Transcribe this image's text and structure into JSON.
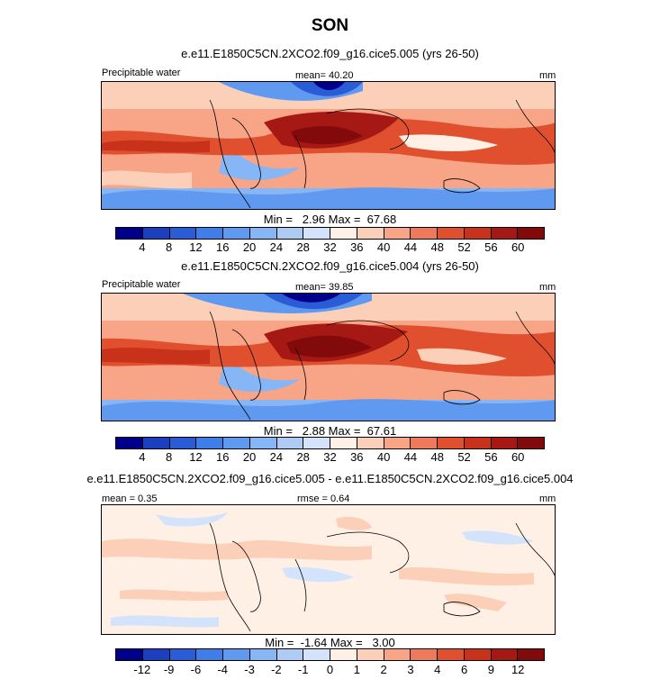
{
  "season": "SON",
  "chart_data": [
    {
      "type": "heatmap",
      "title": "e.e11.E1850C5CN.2XCO2.f09_g16.cice5.005 (yrs 26-50)",
      "variable": "Precipitable water",
      "units": "mm",
      "mean_label": "mean=  40.20",
      "min_max": "Min =   2.96 Max =  67.68",
      "min": 2.96,
      "max": 67.68,
      "colorbar_ticks": [
        "4",
        "8",
        "12",
        "16",
        "20",
        "24",
        "28",
        "32",
        "36",
        "40",
        "44",
        "48",
        "52",
        "56",
        "60"
      ],
      "colorbar_colors": [
        "#00008b",
        "#1c3fbf",
        "#2b5cd8",
        "#3f7ee8",
        "#5f9af0",
        "#86b6f5",
        "#aecbf4",
        "#d3e3fb",
        "#fff0e6",
        "#fcd0b8",
        "#f7a487",
        "#ee7a5b",
        "#e0502f",
        "#c9321a",
        "#a51814",
        "#830a0a"
      ]
    },
    {
      "type": "heatmap",
      "title": "e.e11.E1850C5CN.2XCO2.f09_g16.cice5.004 (yrs 26-50)",
      "variable": "Precipitable water",
      "units": "mm",
      "mean_label": "mean=  39.85",
      "min_max": "Min =   2.88 Max =  67.61",
      "min": 2.88,
      "max": 67.61,
      "colorbar_ticks": [
        "4",
        "8",
        "12",
        "16",
        "20",
        "24",
        "28",
        "32",
        "36",
        "40",
        "44",
        "48",
        "52",
        "56",
        "60"
      ],
      "colorbar_colors": [
        "#00008b",
        "#1c3fbf",
        "#2b5cd8",
        "#3f7ee8",
        "#5f9af0",
        "#86b6f5",
        "#aecbf4",
        "#d3e3fb",
        "#fff0e6",
        "#fcd0b8",
        "#f7a487",
        "#ee7a5b",
        "#e0502f",
        "#c9321a",
        "#a51814",
        "#830a0a"
      ]
    },
    {
      "type": "heatmap",
      "title": "e.e11.E1850C5CN.2XCO2.f09_g16.cice5.005 - e.e11.E1850C5CN.2XCO2.f09_g16.cice5.004",
      "variable": "",
      "units": "mm",
      "mean_label": "mean =   0.35",
      "rmse_label": "rmse =   0.64",
      "min_max": "Min =  -1.64 Max =   3.00",
      "min": -1.64,
      "max": 3.0,
      "colorbar_ticks": [
        "-12",
        "-9",
        "-6",
        "-4",
        "-3",
        "-2",
        "-1",
        "0",
        "1",
        "2",
        "3",
        "4",
        "6",
        "9",
        "12"
      ],
      "colorbar_colors": [
        "#00008b",
        "#1c3fbf",
        "#2b5cd8",
        "#3f7ee8",
        "#5f9af0",
        "#86b6f5",
        "#aecbf4",
        "#d3e3fb",
        "#fff0e6",
        "#fcd0b8",
        "#f7a487",
        "#ee7a5b",
        "#e0502f",
        "#c9321a",
        "#a51814",
        "#830a0a"
      ]
    }
  ]
}
